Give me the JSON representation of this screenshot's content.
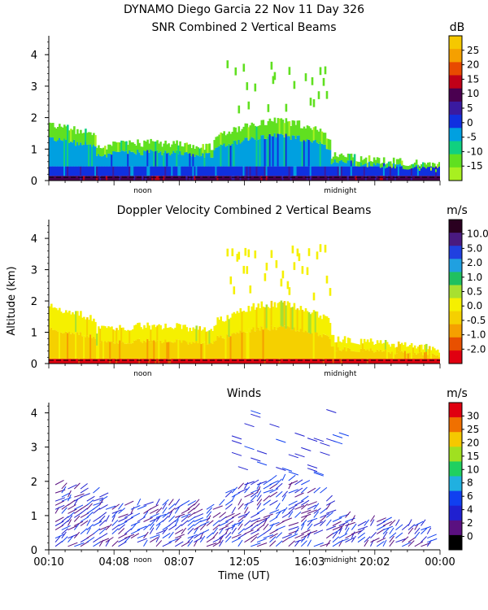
{
  "header": {
    "line1": "DYNAMO Diego Garcia  22 Nov 11 Day 326",
    "line2": "SNR Combined 2 Vertical Beams"
  },
  "y_axis_label": "Altitude (km)",
  "x_axis_label": "Time (UT)",
  "chart_data": [
    {
      "id": "snr",
      "type": "heatmap",
      "title": "SNR Combined 2 Vertical Beams",
      "ylabel": "Altitude (km)",
      "ylim": [
        0,
        4.6
      ],
      "yticks": [
        "0",
        "1",
        "2",
        "3",
        "4"
      ],
      "xmarks": [
        "noon",
        "midnight"
      ],
      "colorbar": {
        "unit": "dB",
        "labels": [
          "25",
          "20",
          "15",
          "10",
          "5",
          "0",
          "-5",
          "-10",
          "-15"
        ],
        "colors": [
          "#f5c800",
          "#f5a000",
          "#e84a00",
          "#c00018",
          "#4a0050",
          "#3a1aa0",
          "#1030e0",
          "#00a0e0",
          "#10d080",
          "#60e020",
          "#a8f020"
        ]
      }
    },
    {
      "id": "doppler",
      "type": "heatmap",
      "title": "Doppler Velocity Combined 2 Vertical Beams",
      "ylabel": "Altitude (km)",
      "ylim": [
        0,
        4.6
      ],
      "yticks": [
        "0",
        "1",
        "2",
        "3",
        "4"
      ],
      "xmarks": [
        "noon",
        "midnight"
      ],
      "colorbar": {
        "unit": "m/s",
        "labels": [
          "10.0",
          "5.0",
          "2.0",
          "1.0",
          "0.5",
          "0.0",
          "-0.5",
          "-1.0",
          "-2.0"
        ],
        "colors": [
          "#2a0020",
          "#4a1a80",
          "#2040e0",
          "#20a0e0",
          "#20c060",
          "#a8e030",
          "#f5f000",
          "#f5d000",
          "#f5a000",
          "#e85000",
          "#e00010"
        ]
      }
    },
    {
      "id": "winds",
      "type": "scatter",
      "title": "Winds",
      "ylabel": "Altitude (km)",
      "xlabel": "Time (UT)",
      "ylim": [
        0,
        4.3
      ],
      "yticks": [
        "0",
        "1",
        "2",
        "3",
        "4"
      ],
      "xticks": [
        "00:10",
        "04:08",
        "08:07",
        "12:05",
        "16:03",
        "20:02",
        "00:00"
      ],
      "xmarks": [
        "noon",
        "midnight"
      ],
      "colorbar": {
        "unit": "m/s",
        "labels": [
          "30",
          "25",
          "20",
          "15",
          "10",
          "8",
          "6",
          "4",
          "2",
          "0"
        ],
        "colors": [
          "#e00010",
          "#f07000",
          "#f5c800",
          "#a0e020",
          "#20d060",
          "#20b0e0",
          "#1040f0",
          "#2020d0",
          "#5a1080",
          "#000000"
        ]
      }
    }
  ]
}
